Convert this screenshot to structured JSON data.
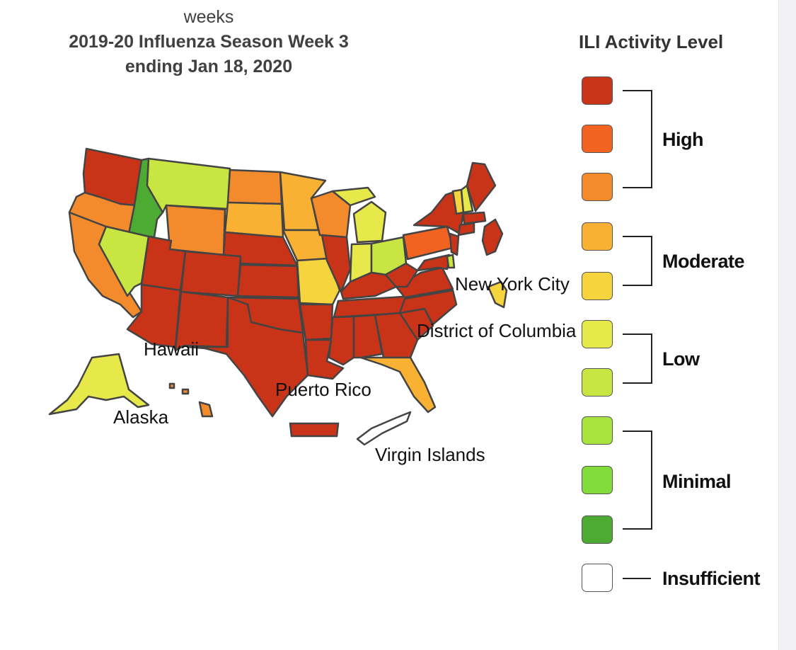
{
  "header": {
    "top_text": "weeks",
    "title_line1": "2019-20 Influenza Season Week 3",
    "title_line2": "ending Jan 18, 2020"
  },
  "legend": {
    "title": "ILI Activity Level",
    "swatches": [
      {
        "color": "#c93418"
      },
      {
        "color": "#f26321"
      },
      {
        "color": "#f38b2d"
      },
      {
        "color": "#f8b133"
      },
      {
        "color": "#f6d43e"
      },
      {
        "color": "#e7e94a"
      },
      {
        "color": "#c9e541"
      },
      {
        "color": "#a8e33e"
      },
      {
        "color": "#82dc3c"
      },
      {
        "color": "#4daa32"
      },
      {
        "color": "#ffffff"
      }
    ],
    "groups": [
      {
        "label": "High"
      },
      {
        "label": "Moderate"
      },
      {
        "label": "Low"
      },
      {
        "label": "Minimal"
      },
      {
        "label": "Insufficient"
      }
    ]
  },
  "map_labels": {
    "nyc": "New York City",
    "dc": "District of Columbia",
    "hawaii": "Hawaii",
    "alaska": "Alaska",
    "puerto_rico": "Puerto Rico",
    "virgin_islands": "Virgin Islands"
  },
  "colors": {
    "high": "#c93418",
    "high2": "#f26321",
    "high3": "#f38b2d",
    "moderate": "#f8b133",
    "moderate2": "#f6d43e",
    "low": "#e7e94a",
    "low2": "#c9e541",
    "minimal": "#4daa32",
    "insufficient": "#ffffff",
    "state_border": "#444444"
  }
}
